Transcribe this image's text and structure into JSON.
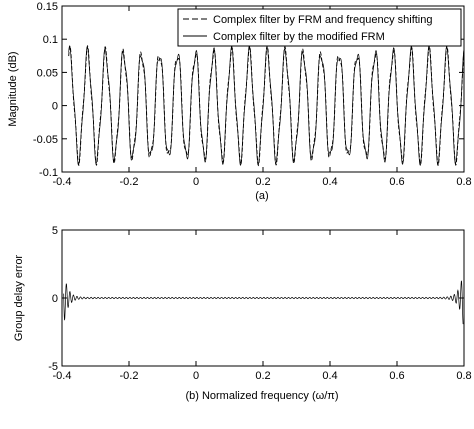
{
  "chart_data": [
    {
      "type": "line",
      "xlabel": "(a)",
      "ylabel": "Magnitude (dB)",
      "xlim": [
        -0.4,
        0.8
      ],
      "ylim": [
        -0.1,
        0.15
      ],
      "xticks": [
        -0.4,
        -0.2,
        0,
        0.2,
        0.4,
        0.6,
        0.8
      ],
      "xtick_labels": [
        "-0.4",
        "-0.2",
        "0",
        "0.2",
        "0.4",
        "0.6",
        "0.8"
      ],
      "yticks": [
        -0.1,
        -0.05,
        0,
        0.05,
        0.1,
        0.15
      ],
      "ytick_labels": [
        "-0.1",
        "-0.05",
        "0",
        "0.05",
        "0.1",
        "0.15"
      ],
      "grid": false,
      "legend_position": "top-right",
      "ripple": {
        "x_start": -0.38,
        "x_end": 0.8,
        "peaks": 22,
        "max": 0.09,
        "min": -0.09
      },
      "series": [
        {
          "name": "Complex filter by FRM and frequency shifting",
          "style": "dashed"
        },
        {
          "name": "Complex filter by the modified FRM",
          "style": "solid"
        }
      ]
    },
    {
      "type": "line",
      "xlabel": "(b) Normalized frequency (ω/π)",
      "ylabel": "Group delay error",
      "xlim": [
        -0.4,
        0.8
      ],
      "ylim": [
        -5,
        5
      ],
      "xticks": [
        -0.4,
        -0.2,
        0,
        0.2,
        0.4,
        0.6,
        0.8
      ],
      "xtick_labels": [
        "-0.4",
        "-0.2",
        "0",
        "0.2",
        "0.4",
        "0.6",
        "0.8"
      ],
      "yticks": [
        -5,
        0,
        5
      ],
      "ytick_labels": [
        "-5",
        "0",
        "5"
      ],
      "grid": false,
      "series": [
        {
          "name": "",
          "style": "solid",
          "edge_peak": 2.0,
          "mid_level": 0.05
        }
      ]
    }
  ]
}
